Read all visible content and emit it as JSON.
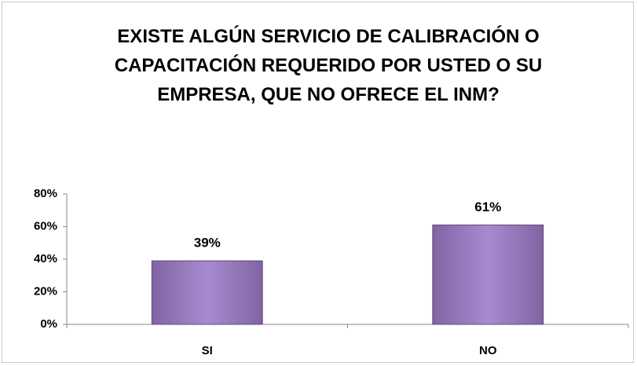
{
  "chart_data": {
    "type": "bar",
    "title": "EXISTE ALGÚN SERVICIO DE CALIBRACIÓN O CAPACITACIÓN REQUERIDO POR USTED O SU EMPRESA, QUE NO OFRECE EL INM?",
    "categories": [
      "SI",
      "NO"
    ],
    "values": [
      39,
      61
    ],
    "value_labels": [
      "39%",
      "61%"
    ],
    "color": "#8064a2",
    "ylim": [
      0,
      80
    ],
    "yticks": [
      {
        "value": 0,
        "label": "0%"
      },
      {
        "value": 20,
        "label": "20%"
      },
      {
        "value": 40,
        "label": "40%"
      },
      {
        "value": 60,
        "label": "60%"
      },
      {
        "value": 80,
        "label": "80%"
      }
    ],
    "grid": false
  }
}
